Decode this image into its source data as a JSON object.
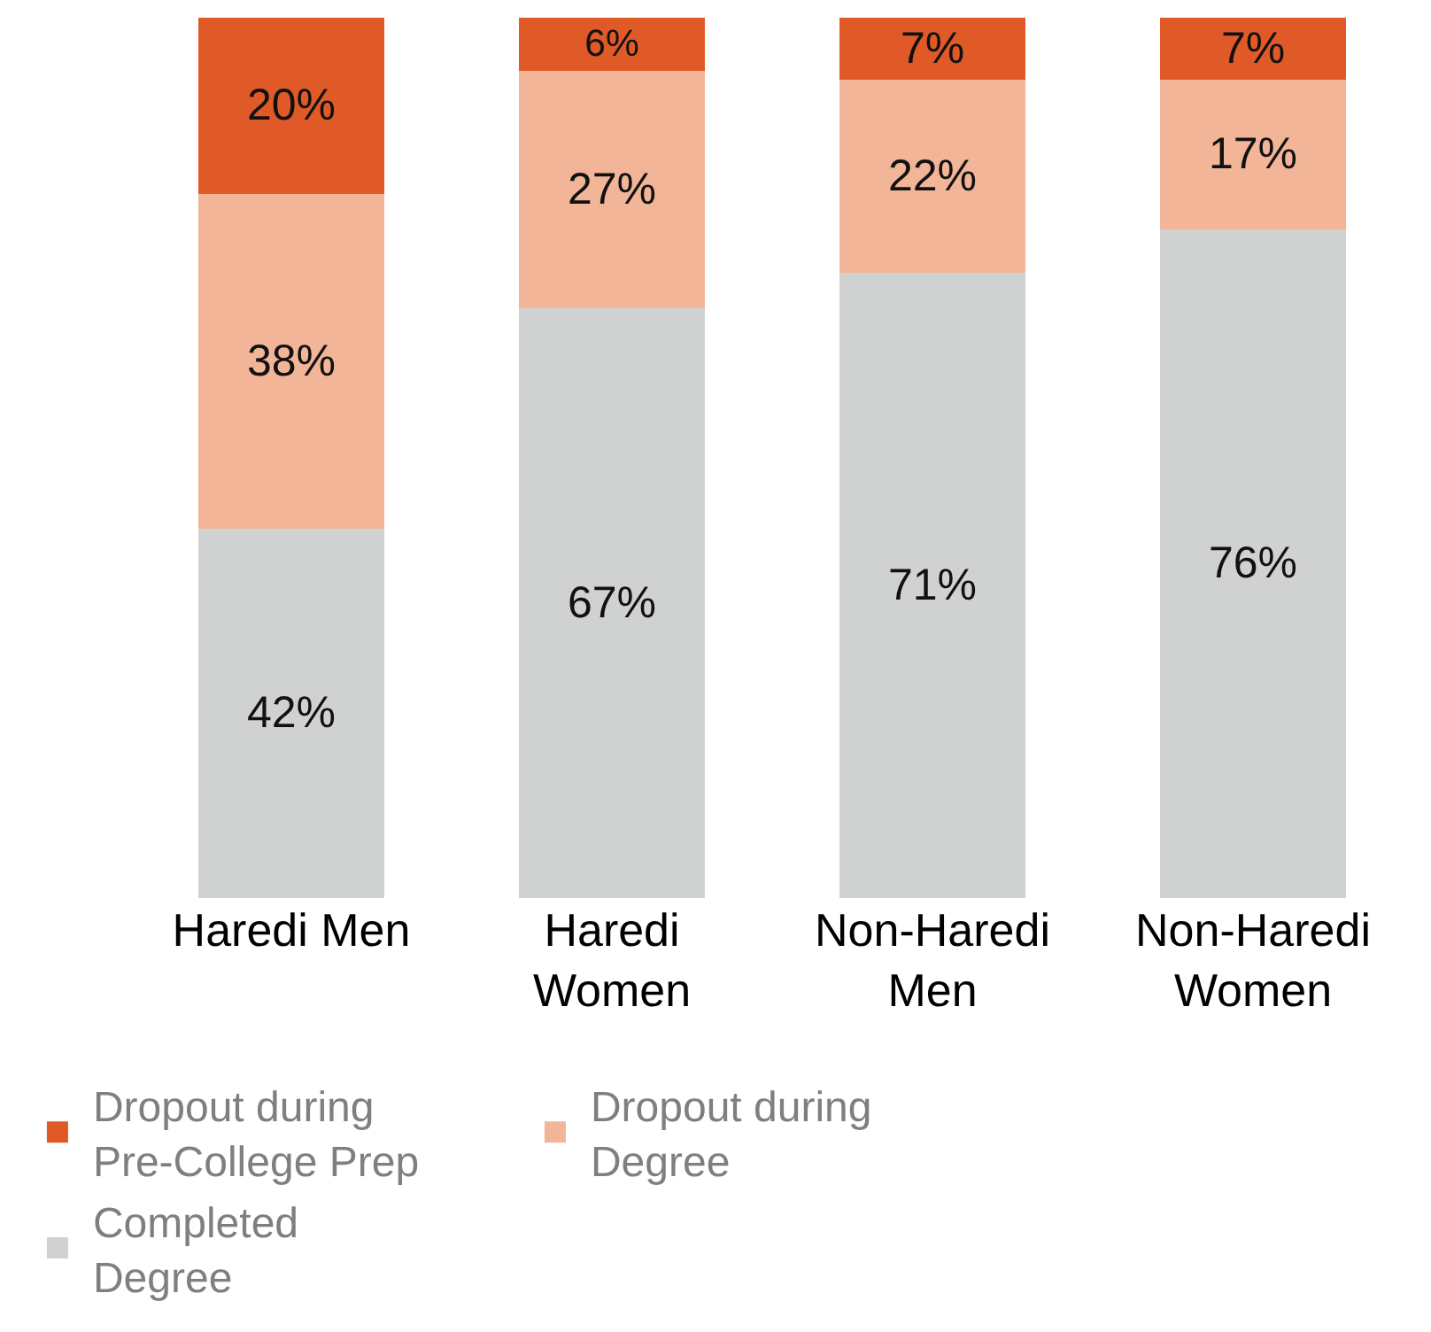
{
  "chart_data": {
    "type": "bar",
    "stacked": true,
    "categories": [
      "Haredi Men",
      "Haredi Women",
      "Non-Haredi Men",
      "Non-Haredi Women"
    ],
    "series": [
      {
        "name": "Completed Degree",
        "color": "#d0d2d1",
        "values": [
          42,
          67,
          71,
          76
        ],
        "value_labels": [
          "42%",
          "67%",
          "71%",
          "76%"
        ]
      },
      {
        "name": "Dropout during Degree",
        "color": "#f2b598",
        "values": [
          38,
          27,
          22,
          17
        ],
        "value_labels": [
          "38%",
          "27%",
          "22%",
          "17%"
        ]
      },
      {
        "name": "Dropout during Pre-College Prep",
        "color": "#e05a28",
        "values": [
          20,
          6,
          7,
          7
        ],
        "value_labels": [
          "20%",
          "6%",
          "7%",
          "7%"
        ]
      }
    ],
    "tick_labels": "x",
    "grid": false,
    "legend": "bottom"
  }
}
